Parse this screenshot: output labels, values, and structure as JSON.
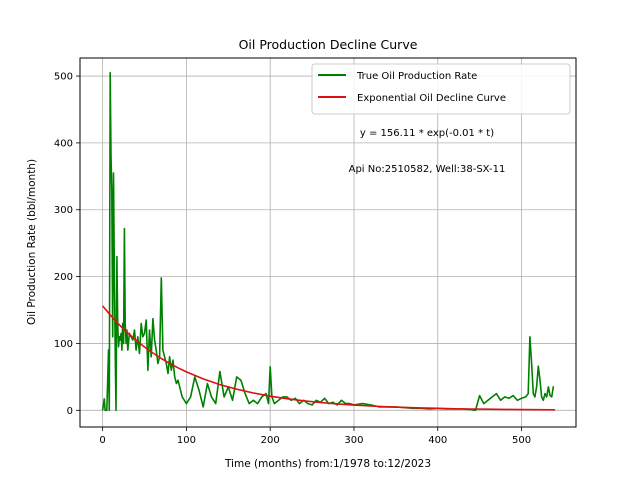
{
  "chart_data": {
    "type": "line",
    "title": "Oil Production Decline Curve",
    "xlabel": "Time (months) from:1/1978 to:12/2023",
    "ylabel": "Oil Production Rate (bbl/month)",
    "xlim": [
      -27,
      565
    ],
    "ylim": [
      -25,
      527
    ],
    "grid": true,
    "legend_position": "top-right",
    "x_ticks": [
      0,
      100,
      200,
      300,
      400,
      500
    ],
    "y_ticks": [
      0,
      100,
      200,
      300,
      400,
      500
    ],
    "annotations": [
      "y = 156.11 * exp(-0.01 * t)",
      "Api No:2510582, Well:38-SX-11"
    ],
    "series": [
      {
        "name": "True Oil Production Rate",
        "color": "#008000",
        "x": [
          0,
          2,
          3,
          4,
          5,
          6,
          7,
          8,
          9,
          10,
          11,
          12,
          13,
          14,
          15,
          16,
          17,
          18,
          19,
          20,
          21,
          22,
          23,
          24,
          25,
          26,
          27,
          28,
          29,
          30,
          32,
          34,
          36,
          38,
          40,
          42,
          44,
          46,
          48,
          50,
          52,
          54,
          56,
          58,
          60,
          62,
          64,
          66,
          68,
          70,
          72,
          74,
          76,
          78,
          80,
          82,
          84,
          86,
          88,
          90,
          95,
          100,
          105,
          110,
          115,
          120,
          125,
          130,
          135,
          140,
          145,
          150,
          155,
          160,
          165,
          170,
          175,
          180,
          185,
          190,
          195,
          198,
          200,
          202,
          205,
          210,
          215,
          220,
          225,
          230,
          235,
          240,
          245,
          250,
          255,
          260,
          265,
          270,
          275,
          280,
          285,
          290,
          295,
          300,
          310,
          320,
          330,
          340,
          350,
          360,
          370,
          380,
          390,
          400,
          410,
          420,
          430,
          440,
          445,
          450,
          455,
          460,
          465,
          470,
          475,
          480,
          485,
          490,
          495,
          500,
          505,
          508,
          510,
          512,
          514,
          516,
          518,
          520,
          522,
          524,
          526,
          528,
          530,
          532,
          534,
          536,
          538
        ],
        "y": [
          0,
          17,
          0,
          0,
          0,
          40,
          90,
          0,
          505,
          380,
          330,
          110,
          355,
          200,
          90,
          0,
          230,
          130,
          95,
          110,
          105,
          115,
          90,
          130,
          100,
          272,
          130,
          100,
          120,
          90,
          115,
          110,
          105,
          120,
          90,
          110,
          85,
          130,
          110,
          115,
          135,
          60,
          120,
          80,
          137,
          105,
          90,
          70,
          80,
          198,
          90,
          80,
          70,
          55,
          80,
          60,
          75,
          50,
          40,
          45,
          20,
          10,
          20,
          50,
          30,
          5,
          40,
          20,
          10,
          58,
          20,
          35,
          15,
          50,
          45,
          25,
          10,
          15,
          10,
          20,
          25,
          10,
          65,
          20,
          10,
          15,
          20,
          20,
          15,
          18,
          10,
          15,
          10,
          8,
          15,
          12,
          18,
          10,
          12,
          8,
          15,
          10,
          10,
          8,
          10,
          8,
          5,
          5,
          5,
          4,
          3,
          3,
          2,
          3,
          2,
          2,
          2,
          1,
          0,
          22,
          10,
          15,
          20,
          25,
          15,
          20,
          18,
          22,
          15,
          18,
          20,
          25,
          110,
          70,
          25,
          20,
          35,
          66,
          45,
          20,
          15,
          25,
          20,
          35,
          22,
          20,
          36
        ]
      },
      {
        "name": "Exponential Oil Decline Curve",
        "color": "#dd1111",
        "x": [
          0,
          10,
          20,
          30,
          40,
          50,
          60,
          70,
          80,
          90,
          100,
          120,
          140,
          160,
          180,
          200,
          220,
          240,
          260,
          280,
          300,
          320,
          340,
          360,
          380,
          400,
          420,
          440,
          460,
          480,
          500,
          520,
          540
        ],
        "y": [
          156.11,
          141.3,
          127.8,
          115.6,
          104.6,
          94.7,
          85.7,
          77.5,
          70.1,
          63.5,
          57.4,
          47.0,
          38.5,
          31.5,
          25.8,
          21.1,
          17.3,
          14.2,
          11.6,
          9.5,
          7.8,
          6.4,
          5.2,
          4.3,
          3.5,
          2.9,
          2.3,
          1.9,
          1.6,
          1.3,
          1.1,
          0.9,
          0.7
        ]
      }
    ]
  }
}
